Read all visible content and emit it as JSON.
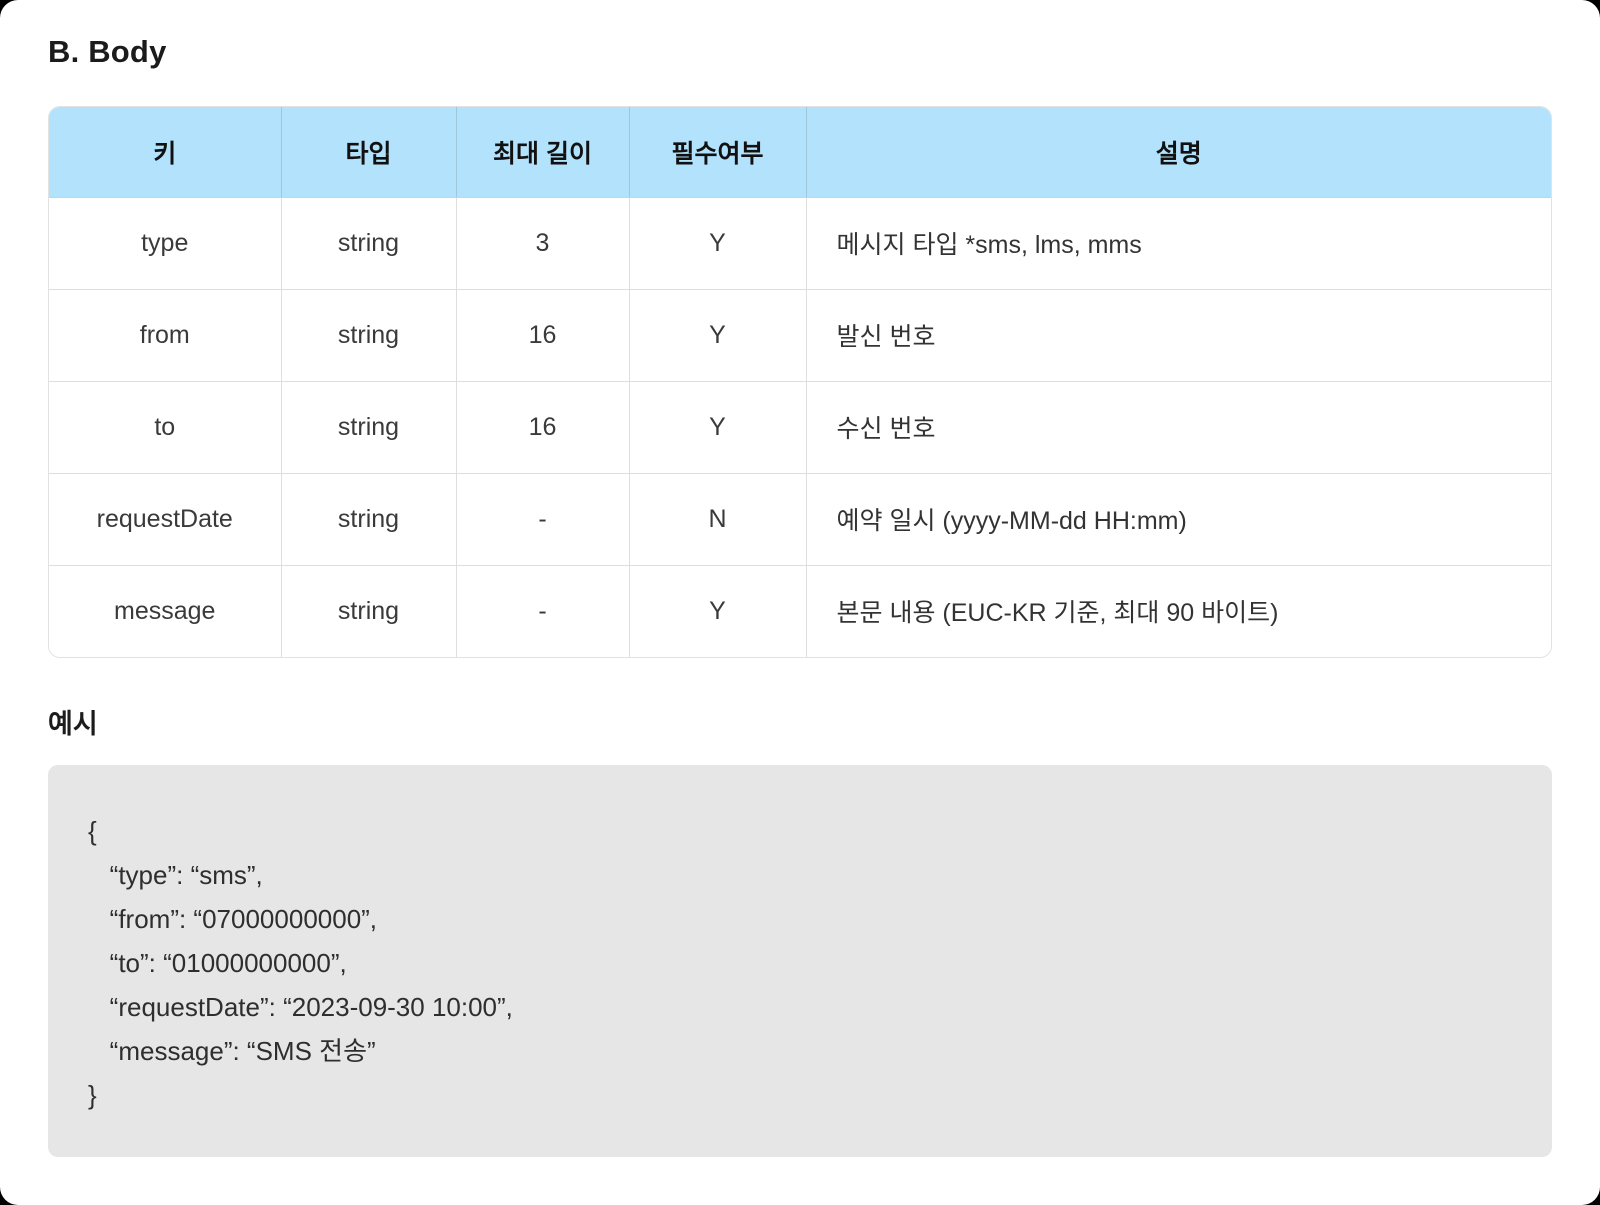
{
  "page": {
    "title": "B. Body"
  },
  "table": {
    "headers": [
      "키",
      "타입",
      "최대 길이",
      "필수여부",
      "설명"
    ],
    "rows": [
      {
        "key": "type",
        "type": "string",
        "max_length": "3",
        "required": "Y",
        "description": "메시지 타입 *sms, lms, mms"
      },
      {
        "key": "from",
        "type": "string",
        "max_length": "16",
        "required": "Y",
        "description": "발신 번호"
      },
      {
        "key": "to",
        "type": "string",
        "max_length": "16",
        "required": "Y",
        "description": "수신 번호"
      },
      {
        "key": "requestDate",
        "type": "string",
        "max_length": "-",
        "required": "N",
        "description": "예약 일시 (yyyy-MM-dd HH:mm)"
      },
      {
        "key": "message",
        "type": "string",
        "max_length": "-",
        "required": "Y",
        "description": "본문 내용 (EUC-KR 기준, 최대 90 바이트)"
      }
    ]
  },
  "example": {
    "label": "예시",
    "code_lines": [
      "{",
      "   “type”: “sms”,",
      "   “from”: “07000000000”,",
      "   “to”: “01000000000”,",
      "   “requestDate”: “2023-09-30 10:00”,",
      "   “message”: “SMS 전송”",
      "}"
    ]
  },
  "colors": {
    "header_bg": "#b2e2fc",
    "code_bg": "#e6e6e6",
    "card_bg": "#ffffff",
    "text": "#333333"
  }
}
